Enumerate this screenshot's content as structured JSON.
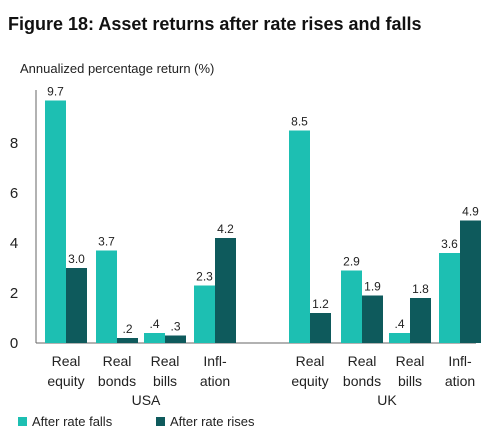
{
  "figure_title": "Figure 18: Asset returns after rate rises and falls",
  "chart_data": {
    "type": "bar",
    "ylabel": "Annualized percentage return (%)",
    "ylim": [
      0,
      10
    ],
    "yticks": [
      0,
      2,
      4,
      6,
      8
    ],
    "grid": false,
    "legend_position": "bottom-left",
    "groups": [
      {
        "name": "USA",
        "categories": [
          "Real\nequity",
          "Real\nbonds",
          "Real\nbills",
          "Infl-\nation"
        ],
        "series": [
          {
            "name": "After rate falls",
            "values": [
              9.7,
              3.7,
              0.4,
              2.3
            ],
            "labels": [
              "9.7",
              "3.7",
              ".4",
              "2.3"
            ]
          },
          {
            "name": "After rate rises",
            "values": [
              3.0,
              0.2,
              0.3,
              4.2
            ],
            "labels": [
              "3.0",
              ".2",
              ".3",
              "4.2"
            ]
          }
        ]
      },
      {
        "name": "UK",
        "categories": [
          "Real\nequity",
          "Real\nbonds",
          "Real\nbills",
          "Infl-\nation"
        ],
        "series": [
          {
            "name": "After rate falls",
            "values": [
              8.5,
              2.9,
              0.4,
              3.6
            ],
            "labels": [
              "8.5",
              "2.9",
              ".4",
              "3.6"
            ]
          },
          {
            "name": "After rate rises",
            "values": [
              1.2,
              1.9,
              1.8,
              4.9
            ],
            "labels": [
              "1.2",
              "1.9",
              "1.8",
              "4.9"
            ]
          }
        ]
      }
    ],
    "series_colors": {
      "After rate falls": "#1dbfb2",
      "After rate rises": "#0e5a5c"
    }
  }
}
